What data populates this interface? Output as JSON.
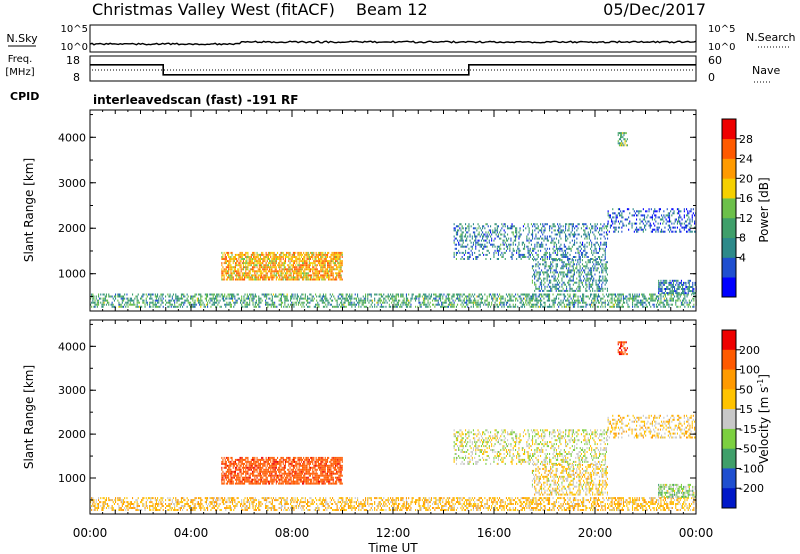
{
  "header": {
    "station": "Christmas Valley West (fitACF)",
    "beam": "Beam 12",
    "date": "05/Dec/2017"
  },
  "noise_panel": {
    "left_label": "N.Sky",
    "right_label": "N.Search",
    "left_ticks": [
      "10^5",
      "10^0"
    ],
    "right_ticks": [
      "10^5",
      "10^0"
    ]
  },
  "freq_panel": {
    "left_label_line1": "Freq.",
    "left_label_line2": "[MHz]",
    "left_ticks": [
      "18",
      "8"
    ],
    "right_label": "Nave",
    "right_ticks": [
      "60",
      "0"
    ]
  },
  "cpid": {
    "label": "CPID",
    "text": "interleavedscan (fast) -191 RF"
  },
  "axes": {
    "ylabel": "Slant Range [km]",
    "xlabel": "Time UT",
    "xticks": [
      "00:00",
      "04:00",
      "08:00",
      "12:00",
      "16:00",
      "20:00",
      "00:00"
    ],
    "yticks": [
      "1000",
      "2000",
      "3000",
      "4000"
    ]
  },
  "colorbars": {
    "power": {
      "label": "Power [dB]",
      "ticks": [
        "28",
        "24",
        "20",
        "16",
        "12",
        "8",
        "4"
      ],
      "colors": [
        "#0000ff",
        "#1f4fd0",
        "#2d8a8a",
        "#3f9f6a",
        "#6cc04a",
        "#f5d000",
        "#ff9a00",
        "#ff5a00",
        "#ee0000"
      ]
    },
    "velocity": {
      "label": "Velocity [m s",
      "label_exp": "-1",
      "label_end": "]",
      "ticks": [
        "200",
        "100",
        "50",
        "15",
        "-15",
        "-50",
        "-100",
        "-200"
      ],
      "colors": [
        "#ee0000",
        "#ff5a00",
        "#ff9a00",
        "#ffc300",
        "#c8c8c8",
        "#7cd040",
        "#3f9f6a",
        "#1f4fd0",
        "#0018c8"
      ]
    }
  },
  "chart_data": {
    "type": "heatmap",
    "x_range_hours": [
      0,
      24
    ],
    "y_range_km": [
      180,
      4600
    ],
    "frequency_mhz_steps": [
      {
        "start_h": 0,
        "end_h": 2.9,
        "value": 14.5
      },
      {
        "start_h": 2.9,
        "end_h": 15.0,
        "value": 10.5
      },
      {
        "start_h": 15.0,
        "end_h": 24,
        "value": 14.5
      }
    ],
    "scatter_regions": [
      {
        "name": "near range ground scatter",
        "t_start": 0,
        "t_end": 24,
        "range_km": [
          250,
          550
        ],
        "power_db": 12,
        "velocity_ms": -40,
        "density": 0.5
      },
      {
        "name": "morning ionospheric scatter",
        "t_start": 5.2,
        "t_end": 10.0,
        "range_km": [
          850,
          1450
        ],
        "power_db": 22,
        "velocity_ms": -170,
        "density": 0.75
      },
      {
        "name": "afternoon scatter",
        "t_start": 14.4,
        "t_end": 20.5,
        "range_km": [
          1300,
          2100
        ],
        "power_db": 9,
        "velocity_ms": 0,
        "density": 0.35
      },
      {
        "name": "late band",
        "t_start": 17.5,
        "t_end": 20.5,
        "range_km": [
          600,
          1300
        ],
        "power_db": 10,
        "velocity_ms": -20,
        "density": 0.4
      },
      {
        "name": "evening far range",
        "t_start": 20.5,
        "t_end": 24,
        "range_km": [
          1900,
          2400
        ],
        "power_db": 6,
        "velocity_ms": -30,
        "density": 0.35
      },
      {
        "name": "evening mid range",
        "t_start": 22.5,
        "t_end": 24,
        "range_km": [
          550,
          850
        ],
        "power_db": 8,
        "velocity_ms": 20,
        "density": 0.6
      },
      {
        "name": "isolated high range",
        "t_start": 20.9,
        "t_end": 21.3,
        "range_km": [
          3800,
          4100
        ],
        "power_db": 14,
        "velocity_ms": -200,
        "density": 0.6
      }
    ]
  }
}
